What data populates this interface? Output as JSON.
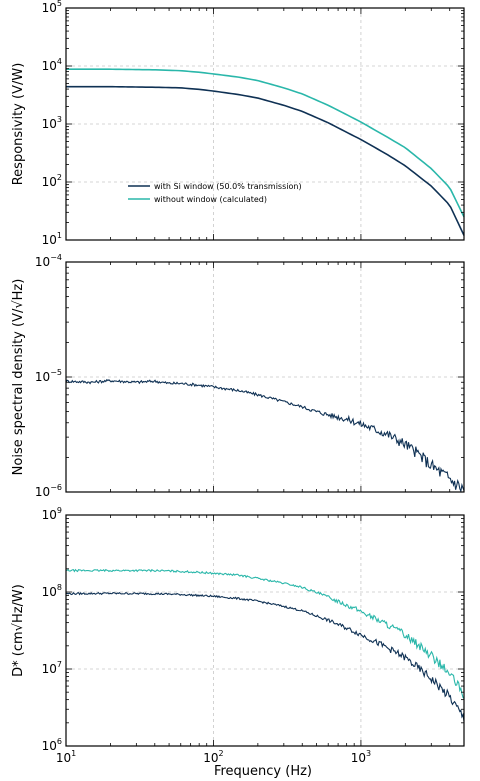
{
  "colors": {
    "dark": "#0f3154",
    "teal": "#2ab7aa",
    "grid": "#c8c8c8"
  },
  "xaxis": {
    "label": "Frequency (Hz)",
    "ticks": [
      {
        "base": "10",
        "exp": "1"
      },
      {
        "base": "10",
        "exp": "2"
      },
      {
        "base": "10",
        "exp": "3"
      }
    ],
    "range": [
      10,
      5000
    ],
    "scale": "log"
  },
  "chart_data": [
    {
      "type": "line",
      "ylabel": "Responsivity (V/W)",
      "yscale": "log",
      "ylim": [
        10,
        100000
      ],
      "xlim": [
        10,
        5000
      ],
      "grid": true,
      "legend_position": "center-left",
      "yticks": [
        {
          "base": "10",
          "exp": "1"
        },
        {
          "base": "10",
          "exp": "2"
        },
        {
          "base": "10",
          "exp": "3"
        },
        {
          "base": "10",
          "exp": "4"
        },
        {
          "base": "10",
          "exp": "5"
        }
      ],
      "series": [
        {
          "name": "with Si window (50.0% transmission)",
          "color": "#0f3154",
          "x": [
            10,
            20,
            40,
            60,
            80,
            100,
            150,
            200,
            300,
            400,
            600,
            800,
            1000,
            1500,
            2000,
            3000,
            4000,
            5000
          ],
          "y": [
            4400,
            4400,
            4300,
            4200,
            3950,
            3700,
            3200,
            2800,
            2100,
            1650,
            1050,
            720,
            540,
            300,
            190,
            85,
            40,
            12
          ]
        },
        {
          "name": "without window (calculated)",
          "color": "#2ab7aa",
          "x": [
            10,
            20,
            40,
            60,
            80,
            100,
            150,
            200,
            300,
            400,
            600,
            800,
            1000,
            1500,
            2000,
            3000,
            4000,
            5000
          ],
          "y": [
            8800,
            8800,
            8600,
            8300,
            7800,
            7300,
            6400,
            5600,
            4200,
            3300,
            2100,
            1450,
            1080,
            600,
            390,
            170,
            80,
            25
          ]
        }
      ]
    },
    {
      "type": "line",
      "ylabel": "Noise spectral density (V/√Hz)",
      "yscale": "log",
      "ylim": [
        1e-06,
        0.0001
      ],
      "xlim": [
        10,
        5000
      ],
      "grid": true,
      "yticks": [
        {
          "base": "10",
          "exp": "−6"
        },
        {
          "base": "10",
          "exp": "−5"
        },
        {
          "base": "10",
          "exp": "−4"
        }
      ],
      "series": [
        {
          "color": "#0f3154",
          "x": [
            10,
            15,
            20,
            30,
            40,
            50,
            60,
            80,
            100,
            150,
            200,
            300,
            400,
            500,
            600,
            800,
            1000,
            1500,
            2000,
            2500,
            3000,
            4000,
            5000
          ],
          "y": [
            9.2e-06,
            9e-06,
            9.3e-06,
            9e-06,
            9.2e-06,
            8.8e-06,
            8.8e-06,
            8.5e-06,
            8.2e-06,
            7.6e-06,
            7e-06,
            6.1e-06,
            5.5e-06,
            5e-06,
            4.7e-06,
            4.3e-06,
            3.9e-06,
            3.2e-06,
            2.6e-06,
            2.1e-06,
            1.7e-06,
            1.3e-06,
            1.05e-06
          ]
        }
      ]
    },
    {
      "type": "line",
      "ylabel": "D* (cm√Hz/W)",
      "yscale": "log",
      "ylim": [
        1000000,
        1000000000
      ],
      "xlim": [
        10,
        5000
      ],
      "grid": true,
      "yticks": [
        {
          "base": "10",
          "exp": "6"
        },
        {
          "base": "10",
          "exp": "7"
        },
        {
          "base": "10",
          "exp": "8"
        },
        {
          "base": "10",
          "exp": "9"
        }
      ],
      "series": [
        {
          "name": "with Si window (50.0% transmission)",
          "color": "#0f3154",
          "x": [
            10,
            20,
            40,
            60,
            80,
            100,
            150,
            200,
            300,
            400,
            600,
            800,
            1000,
            1500,
            2000,
            3000,
            4000,
            5000
          ],
          "y": [
            95000000.0,
            96000000.0,
            95000000.0,
            93000000.0,
            90000000.0,
            88000000.0,
            82000000.0,
            76000000.0,
            65000000.0,
            57000000.0,
            43000000.0,
            34000000.0,
            28000000.0,
            19000000.0,
            14000000.0,
            7500000.0,
            4300000.0,
            2300000.0
          ]
        },
        {
          "name": "without window (calculated)",
          "color": "#2ab7aa",
          "x": [
            10,
            20,
            40,
            60,
            80,
            100,
            150,
            200,
            300,
            400,
            600,
            800,
            1000,
            1500,
            2000,
            3000,
            4000,
            5000
          ],
          "y": [
            190000000.0,
            190000000.0,
            190000000.0,
            185000000.0,
            180000000.0,
            175000000.0,
            165000000.0,
            150000000.0,
            130000000.0,
            115000000.0,
            86000000.0,
            68000000.0,
            56000000.0,
            38000000.0,
            28000000.0,
            15000000.0,
            8600000.0,
            4600000.0
          ]
        }
      ]
    }
  ]
}
